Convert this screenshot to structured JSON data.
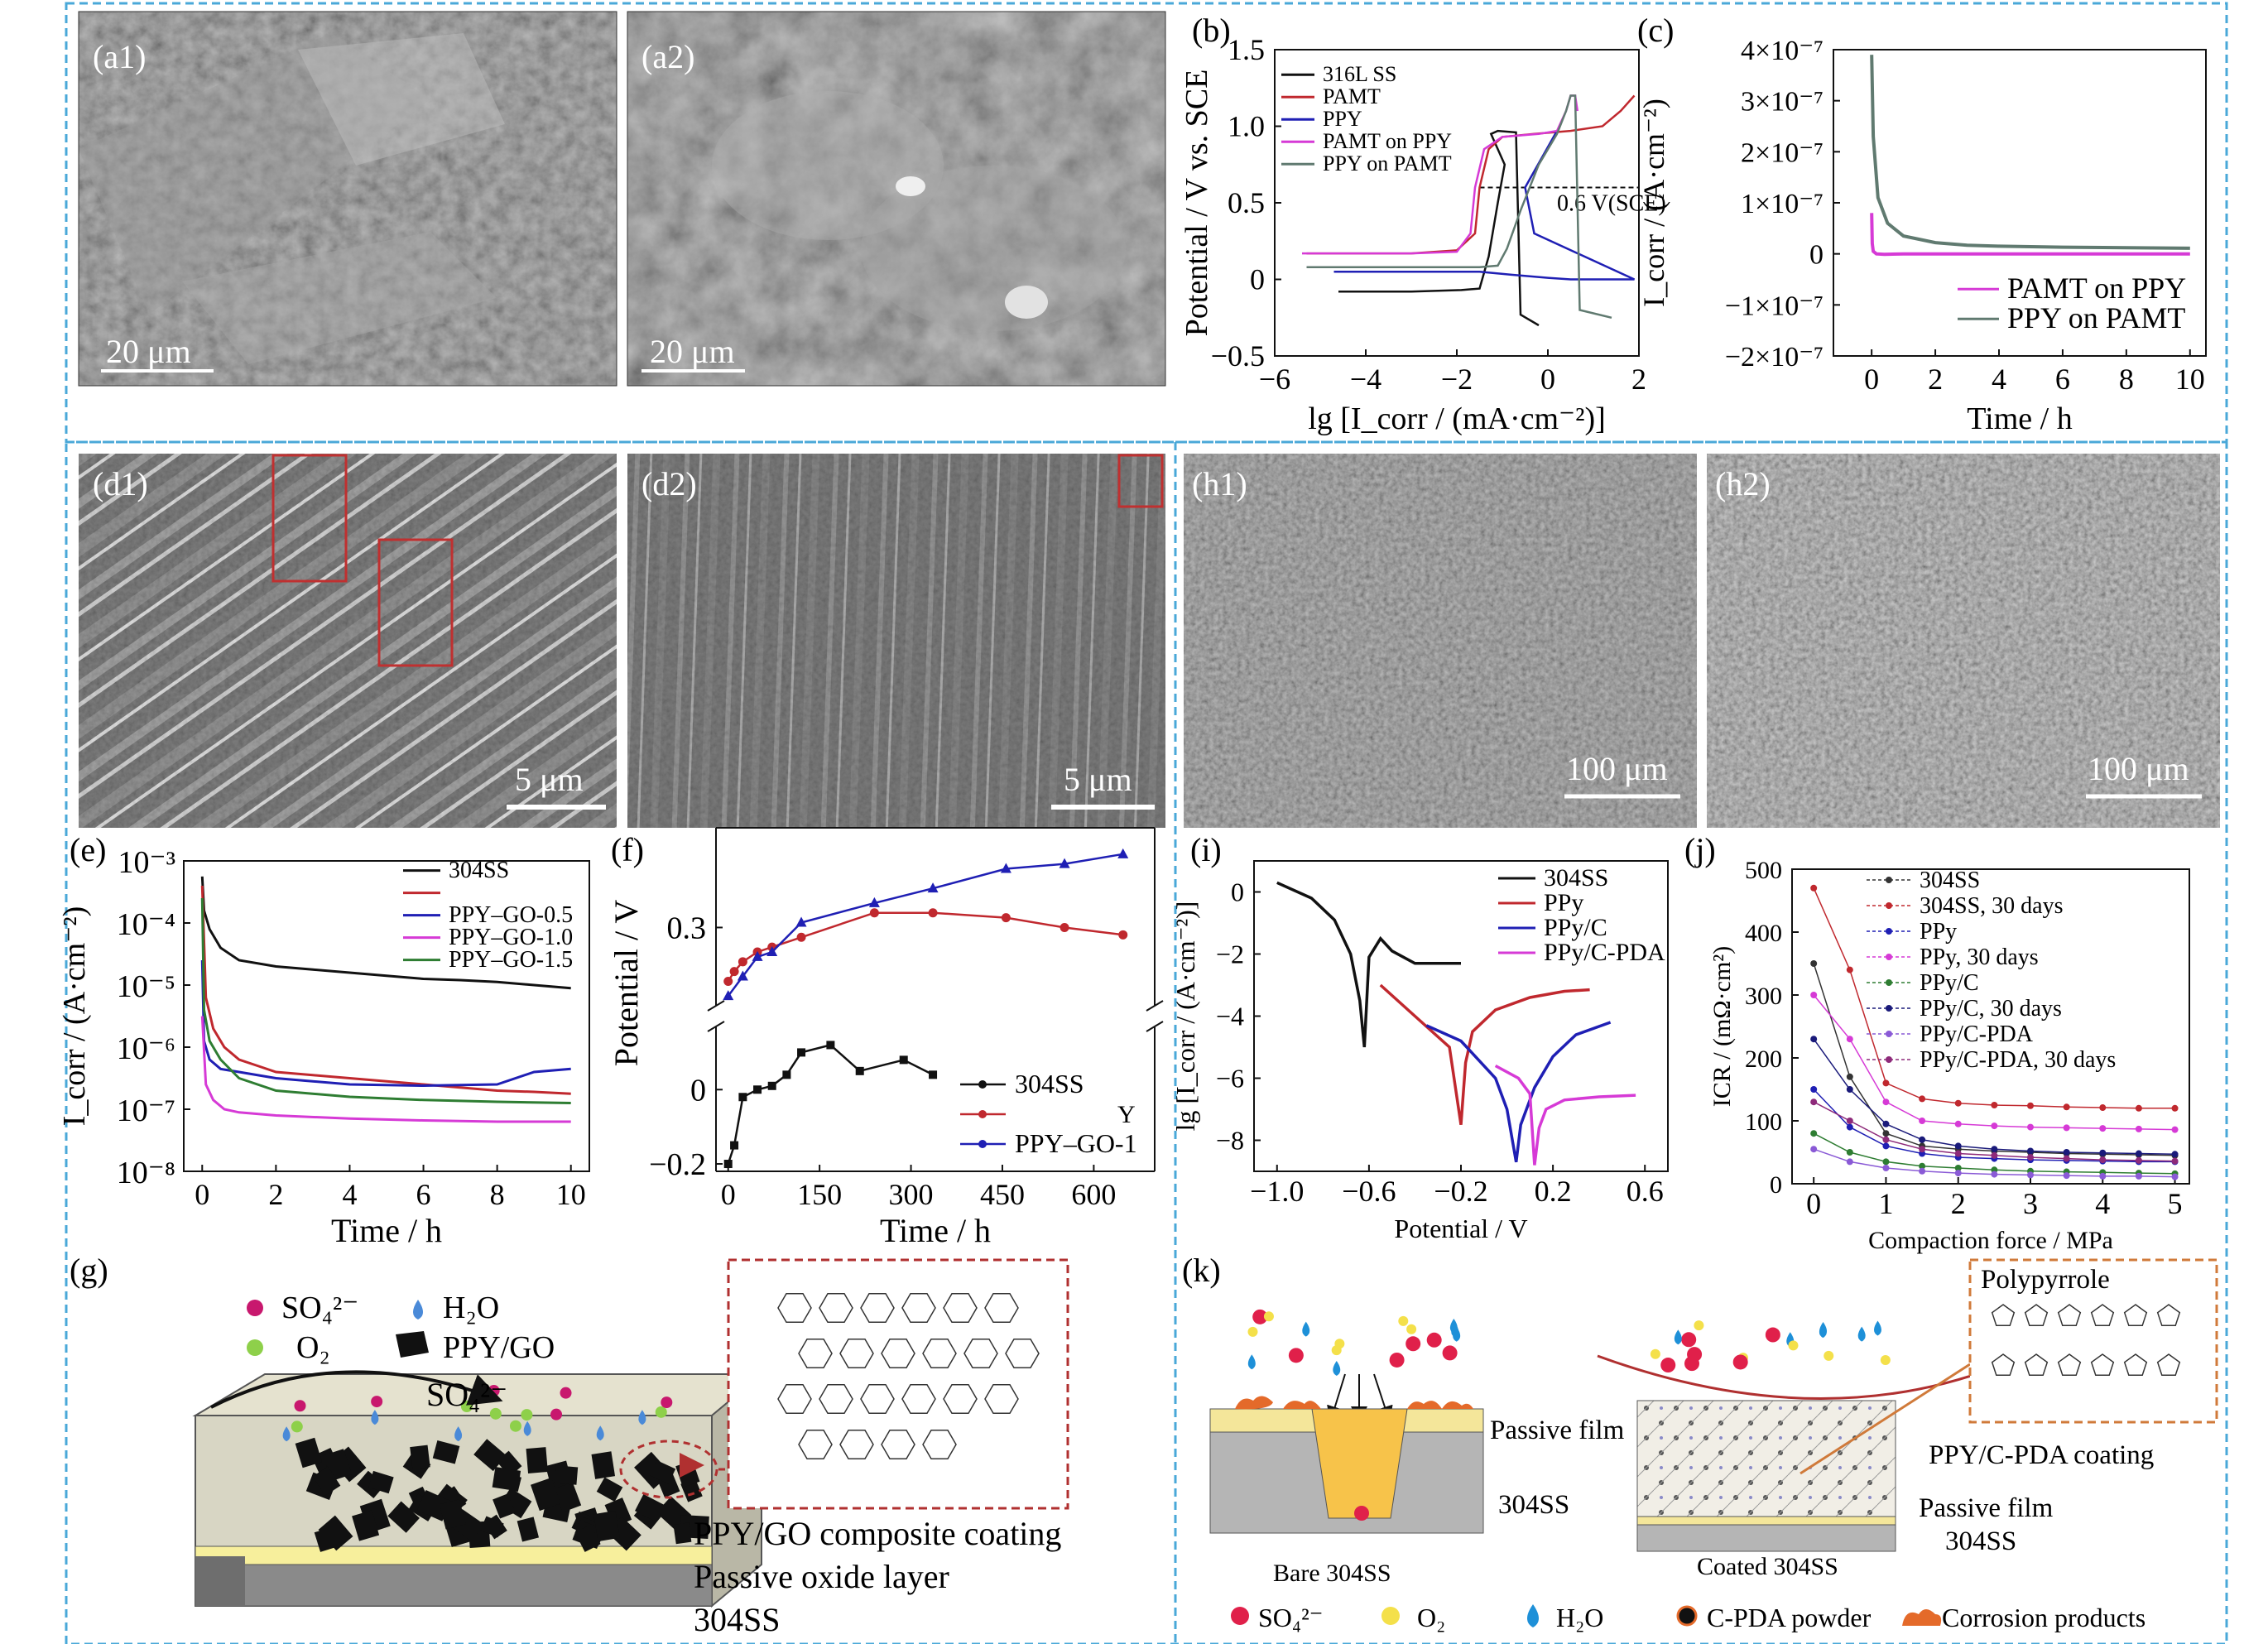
{
  "panel_labels": {
    "a1": "(a1)",
    "a2": "(a2)",
    "b": "(b)",
    "c": "(c)",
    "d1": "(d1)",
    "d2": "(d2)",
    "h1": "(h1)",
    "h2": "(h2)",
    "e": "(e)",
    "f": "(f)",
    "i": "(i)",
    "j": "(j)",
    "g": "(g)",
    "k": "(k)"
  },
  "scale_bars": {
    "a1": "20 μm",
    "a2": "20 μm",
    "d1": "5 μm",
    "d2": "5 μm",
    "h1": "100 μm",
    "h2": "100 μm"
  },
  "colors": {
    "frame": "#4aa8d8",
    "black": "#111111",
    "red": "#c0282e",
    "blue": "#1f1fb4",
    "magenta": "#d63ad6",
    "green": "#2e7d32",
    "gray": "#607a70",
    "dashed_red": "#b03030"
  },
  "chart_data": [
    {
      "id": "b",
      "type": "line",
      "xlabel": "lg [I_corr / (mA·cm⁻²)]",
      "ylabel": "Potential / V vs. SCE",
      "xlim": [
        -6,
        2
      ],
      "ylim": [
        -0.5,
        1.5
      ],
      "xticks": [
        "−6",
        "−4",
        "−2",
        "0",
        "2"
      ],
      "yticks": [
        "−0.5",
        "0",
        "0.5",
        "1.0",
        "1.5"
      ],
      "annotation": "0.6 V(SCE)",
      "reference_line_y": 0.6,
      "legend_position": "top-left",
      "series": [
        {
          "name": "316L SS",
          "color": "#111111",
          "x": [
            -4.6,
            -3.0,
            -1.9,
            -1.5,
            -1.3,
            -1.1,
            -0.95,
            -1.25,
            -1.1,
            -0.7,
            -0.6,
            -0.2
          ],
          "y": [
            -0.08,
            -0.08,
            -0.07,
            -0.06,
            0.15,
            0.5,
            0.75,
            0.95,
            0.97,
            0.96,
            -0.23,
            -0.3
          ]
        },
        {
          "name": "PAMT",
          "color": "#c0282e",
          "x": [
            -5.3,
            -3.0,
            -2.0,
            -1.6,
            -1.5,
            -1.3,
            -1.0,
            -0.3,
            0.5,
            1.2,
            1.6,
            1.9
          ],
          "y": [
            0.17,
            0.17,
            0.19,
            0.3,
            0.6,
            0.85,
            0.93,
            0.95,
            0.97,
            1.0,
            1.1,
            1.2
          ]
        },
        {
          "name": "PPY",
          "color": "#1f1fb4",
          "x": [
            -4.7,
            -3.0,
            -1.5,
            -0.8,
            0.0,
            0.5,
            0.8,
            1.1,
            1.4,
            1.9,
            -0.3,
            -0.5,
            0.2
          ],
          "y": [
            0.05,
            0.05,
            0.05,
            0.03,
            0.01,
            0.0,
            0.0,
            0.0,
            0.0,
            0.0,
            0.3,
            0.6,
            0.97
          ]
        },
        {
          "name": "PAMT on PPY",
          "color": "#d63ad6",
          "x": [
            -5.4,
            -3.0,
            -2.0,
            -1.7,
            -1.6,
            -1.4,
            -1.0,
            -0.2,
            0.2,
            0.4,
            0.5,
            0.6,
            0.65
          ],
          "y": [
            0.17,
            0.17,
            0.18,
            0.3,
            0.6,
            0.85,
            0.93,
            0.95,
            0.97,
            1.1,
            1.2,
            1.2,
            1.1
          ]
        },
        {
          "name": "PPY on PAMT",
          "color": "#607a70",
          "x": [
            -5.3,
            -3.0,
            -1.5,
            -1.1,
            -0.9,
            -0.6,
            -0.2,
            0.2,
            0.4,
            0.5,
            0.6,
            0.7,
            1.4
          ],
          "y": [
            0.08,
            0.08,
            0.08,
            0.09,
            0.2,
            0.45,
            0.75,
            0.95,
            1.1,
            1.2,
            1.2,
            -0.2,
            -0.25
          ]
        }
      ]
    },
    {
      "id": "c",
      "type": "line",
      "xlabel": "Time / h",
      "ylabel": "I_corr / (A·cm⁻²)",
      "xlim": [
        -1.2,
        10.5
      ],
      "ylim": [
        -2e-07,
        4e-07
      ],
      "xticks": [
        "0",
        "2",
        "4",
        "6",
        "8",
        "10"
      ],
      "yticks": [
        "4×10⁻⁷",
        "3×10⁻⁷",
        "2×10⁻⁷",
        "1×10⁻⁷",
        "0",
        "−1×10⁻⁷",
        "−2×10⁻⁷"
      ],
      "legend_position": "bottom-right",
      "series": [
        {
          "name": "PAMT on PPY",
          "color": "#d63ad6",
          "x": [
            0.0,
            0.02,
            0.05,
            0.15,
            0.4,
            1,
            2,
            4,
            6,
            8,
            10
          ],
          "y": [
            8e-08,
            2e-08,
            5e-09,
            0,
            -1e-09,
            0,
            0,
            0,
            0,
            0,
            0
          ]
        },
        {
          "name": "PPY on PAMT",
          "color": "#607a70",
          "x": [
            0.0,
            0.05,
            0.2,
            0.5,
            1,
            2,
            3,
            4,
            6,
            8,
            10
          ],
          "y": [
            3.9e-07,
            2.3e-07,
            1.1e-07,
            6e-08,
            3.5e-08,
            2.2e-08,
            1.7e-08,
            1.5e-08,
            1.3e-08,
            1.2e-08,
            1.1e-08
          ]
        }
      ]
    },
    {
      "id": "e",
      "type": "line",
      "xlabel": "Time / h",
      "ylabel": "I_corr / (A·cm⁻²)",
      "xlim": [
        -0.5,
        10.5
      ],
      "ylim_log10": [
        -8,
        -3
      ],
      "y_scale": "log",
      "xticks": [
        "0",
        "2",
        "4",
        "6",
        "8",
        "10"
      ],
      "yticks": [
        "10⁻³",
        "10⁻⁴",
        "10⁻⁵",
        "10⁻⁶",
        "10⁻⁷",
        "10⁻⁸"
      ],
      "legend_position": "top-right",
      "series": [
        {
          "name": "304SS",
          "color": "#111111",
          "x": [
            0,
            0.05,
            0.2,
            0.5,
            1,
            2,
            3,
            4,
            5,
            6,
            7,
            8,
            9,
            10
          ],
          "log10_y": [
            -3.25,
            -3.8,
            -4.1,
            -4.4,
            -4.6,
            -4.7,
            -4.75,
            -4.8,
            -4.85,
            -4.9,
            -4.92,
            -4.95,
            -5.0,
            -5.05
          ]
        },
        {
          "name": "",
          "color": "#c0282e",
          "x": [
            0,
            0.1,
            0.3,
            0.6,
            1,
            1.5,
            2,
            3,
            4,
            5,
            6,
            7,
            8,
            9,
            10
          ],
          "log10_y": [
            -3.4,
            -5.2,
            -5.7,
            -6.0,
            -6.2,
            -6.3,
            -6.4,
            -6.45,
            -6.5,
            -6.55,
            -6.6,
            -6.65,
            -6.7,
            -6.72,
            -6.75
          ]
        },
        {
          "name": "PPY–GO-0.5",
          "color": "#1f1fb4",
          "x": [
            0,
            0.05,
            0.2,
            0.5,
            1,
            2,
            4,
            6,
            8,
            9,
            10
          ],
          "log10_y": [
            -4.6,
            -5.9,
            -6.2,
            -6.35,
            -6.4,
            -6.5,
            -6.6,
            -6.62,
            -6.6,
            -6.4,
            -6.35
          ]
        },
        {
          "name": "PPY–GO-1.0",
          "color": "#d63ad6",
          "x": [
            0,
            0.1,
            0.3,
            0.6,
            1,
            2,
            4,
            6,
            8,
            10
          ],
          "log10_y": [
            -5.5,
            -6.6,
            -6.85,
            -7.0,
            -7.05,
            -7.1,
            -7.15,
            -7.18,
            -7.2,
            -7.2
          ]
        },
        {
          "name": "PPY–GO-1.5",
          "color": "#2e7d32",
          "x": [
            0,
            0.05,
            0.2,
            0.5,
            1,
            2,
            4,
            6,
            8,
            10
          ],
          "log10_y": [
            -3.6,
            -5.4,
            -5.9,
            -6.2,
            -6.5,
            -6.7,
            -6.8,
            -6.85,
            -6.88,
            -6.9
          ]
        }
      ]
    },
    {
      "id": "f",
      "type": "line",
      "xlabel": "Time / h",
      "ylabel": "Potential / V",
      "xlim": [
        -20,
        700
      ],
      "y_broken_axis": true,
      "xticks": [
        "0",
        "150",
        "300",
        "450",
        "600"
      ],
      "yticks": [
        "0.3",
        "0",
        "−0.2"
      ],
      "legend_position": "bottom-right",
      "legend_extra_text": "Y",
      "series": [
        {
          "name": "304SS",
          "color": "#111111",
          "marker": "square",
          "x": [
            0,
            10,
            24,
            48,
            72,
            96,
            120,
            168,
            216,
            288,
            336
          ],
          "y": [
            -0.2,
            -0.15,
            -0.02,
            0.0,
            0.01,
            0.04,
            0.1,
            0.12,
            0.05,
            0.08,
            0.04
          ]
        },
        {
          "name": "",
          "color": "#c0282e",
          "marker": "circle",
          "x": [
            0,
            10,
            24,
            48,
            72,
            120,
            240,
            336,
            456,
            552,
            648
          ],
          "y": [
            0.19,
            0.21,
            0.23,
            0.25,
            0.26,
            0.28,
            0.33,
            0.33,
            0.32,
            0.3,
            0.285
          ]
        },
        {
          "name": "PPY–GO-1",
          "color": "#1f1fb4",
          "marker": "triangle",
          "x": [
            0,
            24,
            48,
            72,
            120,
            240,
            336,
            456,
            552,
            648
          ],
          "y": [
            0.16,
            0.2,
            0.24,
            0.25,
            0.31,
            0.35,
            0.38,
            0.42,
            0.43,
            0.45
          ]
        }
      ]
    },
    {
      "id": "i",
      "type": "line",
      "xlabel": "Potential / V",
      "ylabel": "lg [I_corr / (A·cm⁻²)]",
      "xlim": [
        -1.1,
        0.7
      ],
      "ylim": [
        -9,
        1
      ],
      "xticks": [
        "−1.0",
        "−0.6",
        "−0.2",
        "0.2",
        "0.6"
      ],
      "yticks": [
        "0",
        "−2",
        "−4",
        "−6",
        "−8"
      ],
      "legend_position": "top-right",
      "series": [
        {
          "name": "304SS",
          "color": "#111111",
          "x": [
            -1.0,
            -0.85,
            -0.75,
            -0.68,
            -0.64,
            -0.62,
            -0.6,
            -0.55,
            -0.5,
            -0.4,
            -0.2
          ],
          "y": [
            0.3,
            -0.2,
            -0.9,
            -2.0,
            -3.5,
            -5.0,
            -2.1,
            -1.5,
            -1.9,
            -2.3,
            -2.3
          ]
        },
        {
          "name": "PPy",
          "color": "#c0282e",
          "x": [
            -0.55,
            -0.4,
            -0.25,
            -0.2,
            -0.18,
            -0.15,
            -0.05,
            0.1,
            0.25,
            0.36
          ],
          "y": [
            -3.0,
            -4.0,
            -5.0,
            -7.5,
            -5.5,
            -4.5,
            -3.8,
            -3.4,
            -3.2,
            -3.15
          ]
        },
        {
          "name": "PPy/C",
          "color": "#1f1fb4",
          "x": [
            -0.35,
            -0.2,
            -0.05,
            0.0,
            0.04,
            0.06,
            0.12,
            0.2,
            0.3,
            0.45
          ],
          "y": [
            -4.3,
            -4.8,
            -6.0,
            -7.0,
            -8.7,
            -7.5,
            -6.3,
            -5.3,
            -4.6,
            -4.2
          ]
        },
        {
          "name": "PPy/C-PDA",
          "color": "#d63ad6",
          "x": [
            -0.05,
            0.05,
            0.1,
            0.12,
            0.14,
            0.17,
            0.25,
            0.4,
            0.56
          ],
          "y": [
            -5.6,
            -6.0,
            -6.5,
            -8.8,
            -7.6,
            -7.0,
            -6.7,
            -6.6,
            -6.55
          ]
        }
      ]
    },
    {
      "id": "j",
      "type": "line",
      "xlabel": "Compaction force / MPa",
      "ylabel": "ICR / (mΩ·cm²)",
      "xlim": [
        -0.3,
        5.2
      ],
      "ylim": [
        0,
        500
      ],
      "xticks": [
        "0",
        "1",
        "2",
        "3",
        "4",
        "5"
      ],
      "yticks": [
        "500",
        "400",
        "300",
        "200",
        "100",
        "0"
      ],
      "legend_position": "top-right",
      "series": [
        {
          "name": "304SS",
          "color": "#333333",
          "x": [
            0,
            0.5,
            1,
            1.5,
            2,
            2.5,
            3,
            3.5,
            4,
            4.5,
            5
          ],
          "y": [
            350,
            170,
            80,
            60,
            55,
            52,
            50,
            48,
            47,
            46,
            45
          ]
        },
        {
          "name": "304SS, 30 days",
          "color": "#c0282e",
          "x": [
            0,
            0.5,
            1,
            1.5,
            2,
            2.5,
            3,
            3.5,
            4,
            4.5,
            5
          ],
          "y": [
            470,
            340,
            160,
            135,
            128,
            125,
            124,
            122,
            121,
            120,
            120
          ]
        },
        {
          "name": "PPy",
          "color": "#1f1fb4",
          "x": [
            0,
            0.5,
            1,
            1.5,
            2,
            2.5,
            3,
            3.5,
            4,
            4.5,
            5
          ],
          "y": [
            150,
            90,
            60,
            48,
            42,
            40,
            38,
            37,
            36,
            35,
            35
          ]
        },
        {
          "name": "PPy, 30 days",
          "color": "#d63ad6",
          "x": [
            0,
            0.5,
            1,
            1.5,
            2,
            2.5,
            3,
            3.5,
            4,
            4.5,
            5
          ],
          "y": [
            300,
            230,
            130,
            100,
            95,
            92,
            90,
            89,
            88,
            87,
            86
          ]
        },
        {
          "name": "PPy/C",
          "color": "#2e7d32",
          "x": [
            0,
            0.5,
            1,
            1.5,
            2,
            2.5,
            3,
            3.5,
            4,
            4.5,
            5
          ],
          "y": [
            80,
            50,
            35,
            28,
            25,
            22,
            20,
            19,
            18,
            17,
            16
          ]
        },
        {
          "name": "PPy/C, 30 days",
          "color": "#1a1a7a",
          "x": [
            0,
            0.5,
            1,
            1.5,
            2,
            2.5,
            3,
            3.5,
            4,
            4.5,
            5
          ],
          "y": [
            230,
            150,
            95,
            70,
            60,
            55,
            52,
            50,
            49,
            48,
            47
          ]
        },
        {
          "name": "PPy/C-PDA",
          "color": "#8a5ad6",
          "x": [
            0,
            0.5,
            1,
            1.5,
            2,
            2.5,
            3,
            3.5,
            4,
            4.5,
            5
          ],
          "y": [
            55,
            35,
            25,
            20,
            17,
            15,
            14,
            13,
            12,
            12,
            11
          ]
        },
        {
          "name": "PPy/C-PDA, 30 days",
          "color": "#8e2a7a",
          "x": [
            0,
            0.5,
            1,
            1.5,
            2,
            2.5,
            3,
            3.5,
            4,
            4.5,
            5
          ],
          "y": [
            130,
            100,
            70,
            55,
            48,
            45,
            42,
            40,
            38,
            37,
            36
          ]
        }
      ]
    }
  ],
  "schematic_g": {
    "legend_so4": "SO₄²⁻",
    "legend_h2o": "H₂O",
    "legend_o2": "O₂",
    "legend_ppygo": "PPY/GO",
    "arrow_label": "SO₄²⁻",
    "label_coating": "PPY/GO composite coating",
    "label_passive": "Passive oxide layer",
    "label_substrate": "304SS"
  },
  "schematic_k": {
    "label_passive_left": "Passive film",
    "label_304_left": "304SS",
    "label_bare": "Bare 304SS",
    "label_coated": "Coated 304SS",
    "label_polypyrrole": "Polypyrrole",
    "label_coating": "PPY/C-PDA coating",
    "label_passive_right": "Passive film",
    "label_304_right": "304SS",
    "legend_so4": "SO₄²⁻",
    "legend_o2": "O₂",
    "legend_h2o": "H₂O",
    "legend_cpda": "C-PDA powder",
    "legend_corrosion": "Corrosion products"
  }
}
